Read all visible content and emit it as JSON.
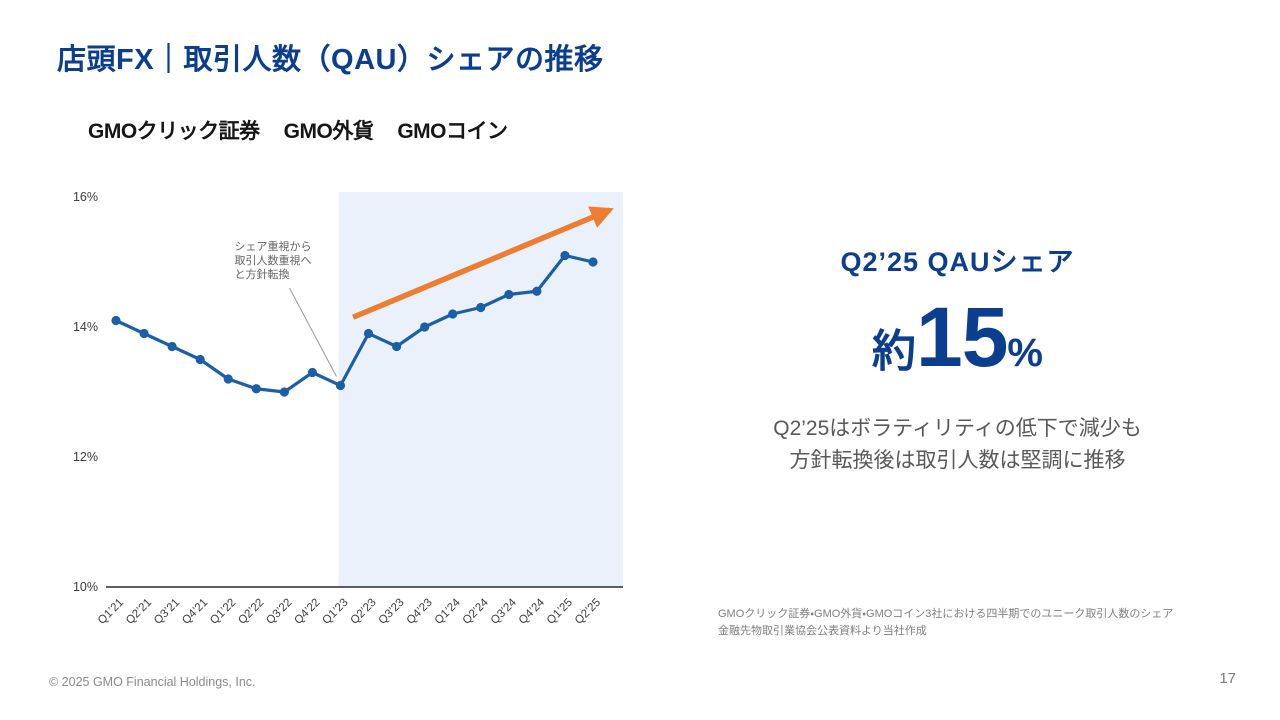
{
  "slide": {
    "title": "店頭FX｜取引人数（QAU）シェアの推移",
    "logos": [
      "GMOクリック証券",
      "GMO外貨",
      "GMOコイン"
    ],
    "highlight": {
      "label": "Q2’25 QAUシェア",
      "value_prefix": "約",
      "value_number": "15",
      "value_suffix": "%"
    },
    "description_lines": [
      "Q2’25はボラティリティの低下で減少も",
      "方針転換後は取引人数は堅調に推移"
    ],
    "footnote_lines": [
      "GMOクリック証券・GMO外貨・GMOコイン3社における四半期でのユニーク取引人数のシェア",
      "金融先物取引業協会公表資料より当社作成"
    ],
    "footer": {
      "copyright": "© 2025 GMO Financial Holdings, Inc.",
      "page_number": "17"
    }
  },
  "chart_data": {
    "type": "line",
    "title": "取引人数（QAU）シェアの推移",
    "categories": [
      "Q1’21",
      "Q2’21",
      "Q3’21",
      "Q4’21",
      "Q1’22",
      "Q2’22",
      "Q3’22",
      "Q4’22",
      "Q1’23",
      "Q2’23",
      "Q3’23",
      "Q4’23",
      "Q1’24",
      "Q2’24",
      "Q3’24",
      "Q4’24",
      "Q1’25",
      "Q2’25"
    ],
    "series": [
      {
        "name": "QAUシェア",
        "values": [
          14.1,
          13.9,
          13.7,
          13.5,
          13.2,
          13.05,
          13.0,
          13.3,
          13.1,
          13.9,
          13.7,
          14.0,
          14.2,
          14.3,
          14.5,
          14.55,
          15.1,
          15.0
        ]
      }
    ],
    "xlabel": "",
    "ylabel": "",
    "ylim": [
      10,
      16
    ],
    "yticks": [
      10,
      12,
      14,
      16
    ],
    "ytick_labels": [
      "10%",
      "12%",
      "14%",
      "16%"
    ],
    "grid": false,
    "legend": "none",
    "line_color": "#1a5fa8",
    "annotation": {
      "lines": [
        "シェア重視から",
        "取引人数重視へ",
        "と方針転換"
      ],
      "target_category": "Q1’23"
    },
    "highlight_region": {
      "from_category": "Q1’23",
      "to_end": true,
      "color": "#ebf1fa"
    },
    "trend_arrow": {
      "from_index": 8.45,
      "from_value": 14.15,
      "to_index": 17.6,
      "to_value": 15.8,
      "color": "#ed7d31"
    }
  }
}
